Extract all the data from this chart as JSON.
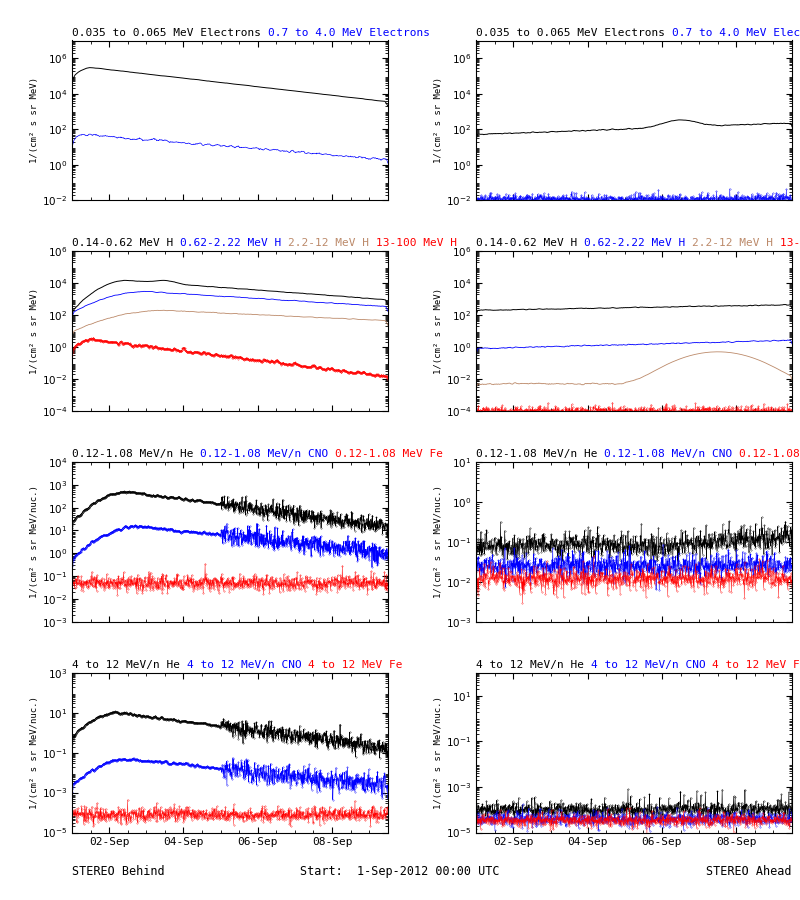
{
  "titles_row1": [
    "0.035 to 0.065 MeV Electrons",
    "0.7 to 4.0 MeV Electrons"
  ],
  "titles_row1_colors": [
    "black",
    "blue"
  ],
  "titles_row2": [
    "0.14-0.62 MeV H",
    "0.62-2.22 MeV H",
    "2.2-12 MeV H",
    "13-100 MeV H"
  ],
  "titles_row2_colors": [
    "black",
    "blue",
    "#bc8a6a",
    "red"
  ],
  "titles_row3": [
    "0.12-1.08 MeV/n He",
    "0.12-1.08 MeV/n CNO",
    "0.12-1.08 MeV Fe"
  ],
  "titles_row3_colors": [
    "black",
    "blue",
    "red"
  ],
  "titles_row4": [
    "4 to 12 MeV/n He",
    "4 to 12 MeV/n CNO",
    "4 to 12 MeV Fe"
  ],
  "titles_row4_colors": [
    "black",
    "blue",
    "red"
  ],
  "xlabel_left": "STEREO Behind",
  "xlabel_center": "Start:  1-Sep-2012 00:00 UTC",
  "xlabel_right": "STEREO Ahead",
  "xtick_labels": [
    "02-Sep",
    "04-Sep",
    "06-Sep",
    "08-Sep"
  ],
  "background_color": "#ffffff",
  "npoints": 1000,
  "days": 8.5,
  "ylabel_mev": "1/(cm² s sr MeV)",
  "ylabel_mevnuc": "1/(cm² s sr MeV/nuc.)"
}
